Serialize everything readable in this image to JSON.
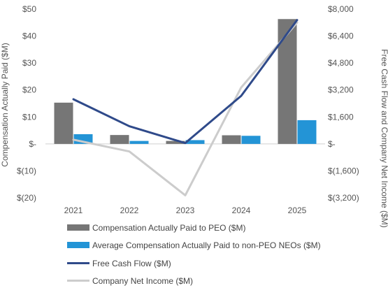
{
  "chart_data": {
    "type": "bar",
    "categories": [
      "2021",
      "2022",
      "2023",
      "2024",
      "2025"
    ],
    "series": [
      {
        "name": "Compensation Actually Paid to PEO ($M)",
        "kind": "bar",
        "axis": "left",
        "color": "#767676",
        "values": [
          15.3,
          3.3,
          1.1,
          3.2,
          46.3
        ]
      },
      {
        "name": "Average Compensation Actually Paid to non-PEO NEOs ($M)",
        "kind": "bar",
        "axis": "left",
        "color": "#2394d6",
        "values": [
          3.6,
          1.1,
          1.4,
          3.0,
          8.8
        ]
      },
      {
        "name": "Free Cash Flow ($M)",
        "kind": "line",
        "axis": "right",
        "color": "#2f4a8a",
        "values": [
          2650,
          1050,
          50,
          2850,
          7350
        ]
      },
      {
        "name": "Company Net Income ($M)",
        "kind": "line",
        "axis": "right",
        "color": "#cccccc",
        "values": [
          250,
          -450,
          -3050,
          3350,
          7200
        ]
      }
    ],
    "ylabel": "Compensation Actually Paid ($M)",
    "ylim": [
      -20,
      50
    ],
    "yticks": [
      50,
      40,
      30,
      20,
      10,
      0,
      -10,
      -20
    ],
    "ytick_labels": [
      "$50",
      "$40",
      "$30",
      "$20",
      "$10",
      "$-",
      "$(10)",
      "$(20)"
    ],
    "y2label": "Free Cash Flow and Company Net Income ($M)",
    "y2lim": [
      -3200,
      8000
    ],
    "y2ticks": [
      8000,
      6400,
      4800,
      3200,
      1600,
      0,
      -1600,
      -3200
    ],
    "y2tick_labels": [
      "$8,000",
      "$6,400",
      "$4,800",
      "$3,200",
      "$1,600",
      "$-",
      "$(1,600)",
      "$(3,200)"
    ],
    "grid": false,
    "legend_position": "bottom"
  }
}
